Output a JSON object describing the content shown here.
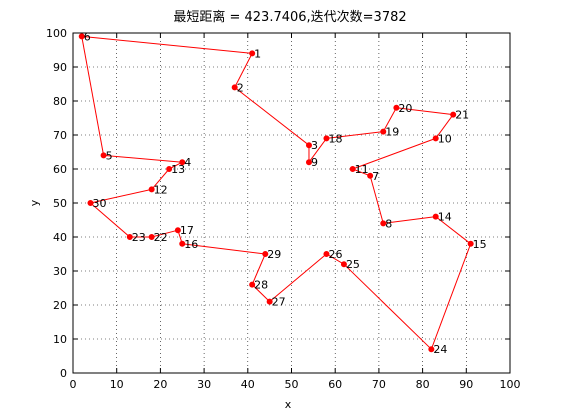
{
  "chart_data": {
    "type": "line",
    "title": "最短距离 = 423.7406,迭代次数=3782",
    "xlabel": "x",
    "ylabel": "y",
    "xlim": [
      0,
      100
    ],
    "ylim": [
      0,
      100
    ],
    "xticks": [
      "0",
      "10",
      "20",
      "30",
      "40",
      "50",
      "60",
      "70",
      "80",
      "90",
      "100"
    ],
    "yticks": [
      "0",
      "10",
      "20",
      "30",
      "40",
      "50",
      "60",
      "70",
      "80",
      "90",
      "100"
    ],
    "grid": true,
    "line_color": "#ff0000",
    "marker_color": "#ff0000",
    "points": [
      {
        "label": "1",
        "x": 41,
        "y": 94
      },
      {
        "label": "2",
        "x": 37,
        "y": 84
      },
      {
        "label": "3",
        "x": 54,
        "y": 67
      },
      {
        "label": "4",
        "x": 25,
        "y": 62
      },
      {
        "label": "5",
        "x": 7,
        "y": 64
      },
      {
        "label": "6",
        "x": 2,
        "y": 99
      },
      {
        "label": "7",
        "x": 68,
        "y": 58
      },
      {
        "label": "8",
        "x": 71,
        "y": 44
      },
      {
        "label": "9",
        "x": 54,
        "y": 62
      },
      {
        "label": "10",
        "x": 83,
        "y": 69
      },
      {
        "label": "11",
        "x": 64,
        "y": 60
      },
      {
        "label": "12",
        "x": 18,
        "y": 54
      },
      {
        "label": "13",
        "x": 22,
        "y": 60
      },
      {
        "label": "14",
        "x": 83,
        "y": 46
      },
      {
        "label": "15",
        "x": 91,
        "y": 38
      },
      {
        "label": "16",
        "x": 25,
        "y": 38
      },
      {
        "label": "17",
        "x": 24,
        "y": 42
      },
      {
        "label": "18",
        "x": 58,
        "y": 69
      },
      {
        "label": "19",
        "x": 71,
        "y": 71
      },
      {
        "label": "20",
        "x": 74,
        "y": 78
      },
      {
        "label": "21",
        "x": 87,
        "y": 76
      },
      {
        "label": "22",
        "x": 18,
        "y": 40
      },
      {
        "label": "23",
        "x": 13,
        "y": 40
      },
      {
        "label": "24",
        "x": 82,
        "y": 7
      },
      {
        "label": "25",
        "x": 62,
        "y": 32
      },
      {
        "label": "26",
        "x": 58,
        "y": 35
      },
      {
        "label": "27",
        "x": 45,
        "y": 21
      },
      {
        "label": "28",
        "x": 41,
        "y": 26
      },
      {
        "label": "29",
        "x": 44,
        "y": 35
      },
      {
        "label": "30",
        "x": 4,
        "y": 50
      }
    ],
    "route": [
      "6",
      "1",
      "2",
      "3",
      "9",
      "18",
      "19",
      "20",
      "21",
      "10",
      "11",
      "7",
      "8",
      "14",
      "15",
      "24",
      "25",
      "26",
      "27",
      "28",
      "29",
      "16",
      "17",
      "22",
      "23",
      "30",
      "12",
      "13",
      "4",
      "5",
      "6"
    ]
  }
}
